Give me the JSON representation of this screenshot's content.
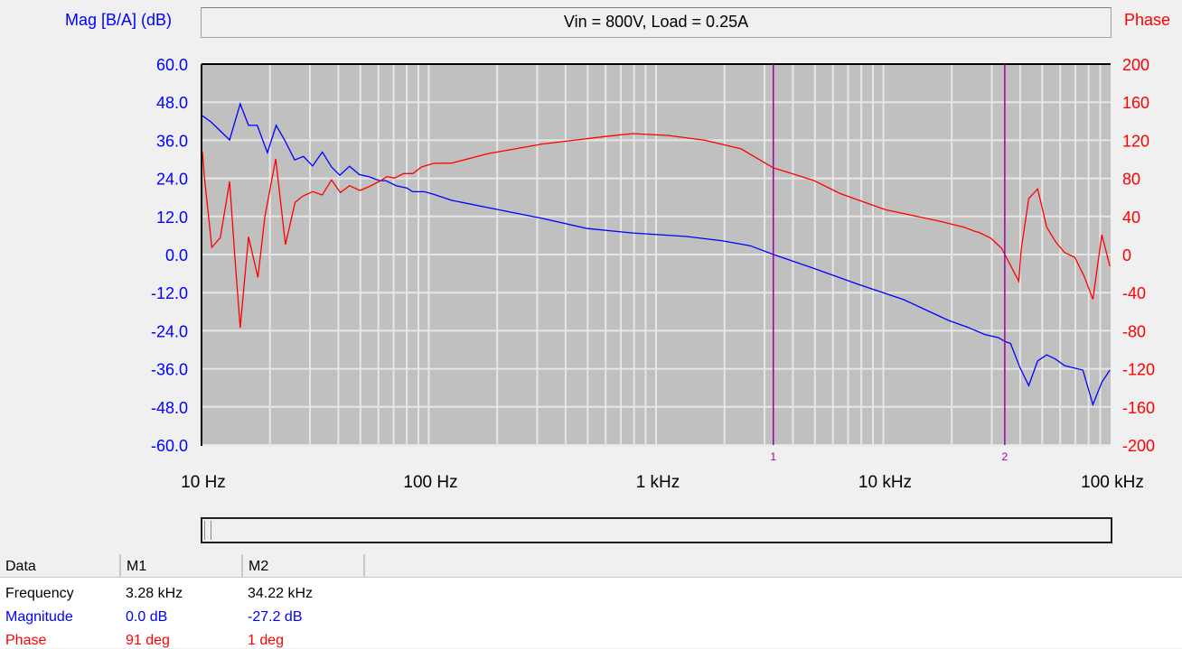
{
  "header": {
    "left_axis_label": "Mag [B/A] (dB)",
    "right_axis_label": "Phase",
    "title": "Vin = 800V, Load = 0.25A"
  },
  "colors": {
    "magnitude": "#0000ff",
    "phase": "#ff0000",
    "marker": "#a000a0",
    "plot_bg": "#c0c0c0",
    "grid": "#e6e6e6"
  },
  "chart_data": {
    "type": "line",
    "title": "Vin = 800V, Load = 0.25A",
    "x_scale": "log",
    "xlim": [
      10,
      100000
    ],
    "x_ticks": [
      10,
      100,
      1000,
      10000,
      100000
    ],
    "x_tick_labels": [
      "10 Hz",
      "100 Hz",
      "1 kHz",
      "10 kHz",
      "100 kHz"
    ],
    "y_left": {
      "label": "Mag [B/A] (dB)",
      "lim": [
        -60,
        60
      ],
      "ticks": [
        "60.0",
        "48.0",
        "36.0",
        "24.0",
        "12.0",
        "0.0",
        "-12.0",
        "-24.0",
        "-36.0",
        "-48.0",
        "-60.0"
      ]
    },
    "y_right": {
      "label": "Phase",
      "lim": [
        -200,
        200
      ],
      "ticks": [
        "200",
        "160",
        "120",
        "80",
        "40",
        "0",
        "-40",
        "-80",
        "-120",
        "-160",
        "-200"
      ]
    },
    "grid": true,
    "markers": [
      {
        "label": "1",
        "freq": 3280
      },
      {
        "label": "2",
        "freq": 34220
      }
    ],
    "series": [
      {
        "axis": "left",
        "color": "#0000ff",
        "points": [
          [
            10.1,
            43.7
          ],
          [
            11.0,
            41.8
          ],
          [
            13.3,
            36.1
          ],
          [
            14.8,
            47.5
          ],
          [
            16.1,
            40.7
          ],
          [
            17.6,
            40.7
          ],
          [
            19.5,
            32.1
          ],
          [
            21.3,
            40.7
          ],
          [
            23.2,
            36.1
          ],
          [
            25.7,
            29.8
          ],
          [
            28.1,
            30.9
          ],
          [
            30.8,
            27.9
          ],
          [
            34.0,
            32.3
          ],
          [
            37.3,
            27.6
          ],
          [
            40.6,
            25.0
          ],
          [
            44.8,
            27.8
          ],
          [
            49.5,
            25.2
          ],
          [
            54.5,
            24.5
          ],
          [
            60.7,
            23.3
          ],
          [
            64.6,
            23.3
          ],
          [
            71.8,
            21.7
          ],
          [
            79.9,
            21.0
          ],
          [
            85.0,
            19.8
          ],
          [
            95.9,
            19.8
          ],
          [
            105,
            19.0
          ],
          [
            126,
            17.1
          ],
          [
            182,
            14.8
          ],
          [
            315,
            11.4
          ],
          [
            499,
            8.2
          ],
          [
            788,
            6.8
          ],
          [
            1365,
            5.7
          ],
          [
            1968,
            4.3
          ],
          [
            2592,
            2.8
          ],
          [
            3288,
            0.0
          ],
          [
            4920,
            -4.3
          ],
          [
            7780,
            -9.4
          ],
          [
            12280,
            -14.2
          ],
          [
            19420,
            -20.8
          ],
          [
            23330,
            -22.8
          ],
          [
            27990,
            -25.2
          ],
          [
            32140,
            -26.2
          ],
          [
            34360,
            -27.4
          ],
          [
            36310,
            -28.0
          ],
          [
            39840,
            -35.5
          ],
          [
            43610,
            -41.3
          ],
          [
            47780,
            -33.5
          ],
          [
            52360,
            -31.6
          ],
          [
            57410,
            -33.0
          ],
          [
            62800,
            -35.0
          ],
          [
            75500,
            -36.4
          ],
          [
            83600,
            -47.3
          ],
          [
            91500,
            -40.2
          ],
          [
            99300,
            -36.4
          ]
        ]
      },
      {
        "axis": "right",
        "color": "#ff0000",
        "points": [
          [
            10.1,
            107.8
          ],
          [
            10.3,
            80.9
          ],
          [
            11.1,
            7.6
          ],
          [
            12.1,
            17.7
          ],
          [
            13.3,
            76.8
          ],
          [
            14.0,
            -1.2
          ],
          [
            14.8,
            -77
          ],
          [
            16.1,
            18.7
          ],
          [
            17.7,
            -24
          ],
          [
            19.0,
            39.8
          ],
          [
            21.2,
            100.5
          ],
          [
            23.4,
            10.4
          ],
          [
            25.8,
            54.7
          ],
          [
            27.9,
            61.3
          ],
          [
            30.8,
            66.1
          ],
          [
            34.0,
            62.6
          ],
          [
            37.3,
            78.4
          ],
          [
            40.8,
            65.1
          ],
          [
            44.8,
            72.3
          ],
          [
            49.8,
            67.3
          ],
          [
            55.4,
            72
          ],
          [
            60.7,
            77
          ],
          [
            65.5,
            81.8
          ],
          [
            70.7,
            80.3
          ],
          [
            77.5,
            85
          ],
          [
            85.0,
            85
          ],
          [
            93.1,
            92
          ],
          [
            105,
            95.7
          ],
          [
            126,
            96
          ],
          [
            182,
            106
          ],
          [
            315,
            116
          ],
          [
            599,
            124
          ],
          [
            788,
            127
          ],
          [
            1137,
            125
          ],
          [
            1640,
            120
          ],
          [
            2364,
            111
          ],
          [
            3288,
            91
          ],
          [
            4920,
            78
          ],
          [
            6470,
            64
          ],
          [
            10230,
            47
          ],
          [
            17740,
            35
          ],
          [
            22640,
            28.7
          ],
          [
            25580,
            24
          ],
          [
            26270,
            23.4
          ],
          [
            29770,
            17
          ],
          [
            33110,
            6.6
          ],
          [
            34360,
            -0.7
          ],
          [
            39450,
            -28
          ],
          [
            40390,
            5
          ],
          [
            43610,
            58.8
          ],
          [
            47780,
            68.9
          ],
          [
            52360,
            28.7
          ],
          [
            57410,
            13
          ],
          [
            62800,
            2
          ],
          [
            69500,
            -2.8
          ],
          [
            76700,
            -23.4
          ],
          [
            83600,
            -47
          ],
          [
            91500,
            20.9
          ],
          [
            99300,
            -12.3
          ]
        ]
      }
    ]
  },
  "table": {
    "headers": [
      "Data",
      "M1",
      "M2"
    ],
    "rows": [
      {
        "label": "Frequency",
        "m1": "3.28 kHz",
        "m2": "34.22 kHz",
        "color": "#000000"
      },
      {
        "label": "Magnitude",
        "m1": "0.0 dB",
        "m2": "-27.2 dB",
        "color": "#0000ff"
      },
      {
        "label": "Phase",
        "m1": "91 deg",
        "m2": "1 deg",
        "color": "#ff0000"
      }
    ]
  }
}
